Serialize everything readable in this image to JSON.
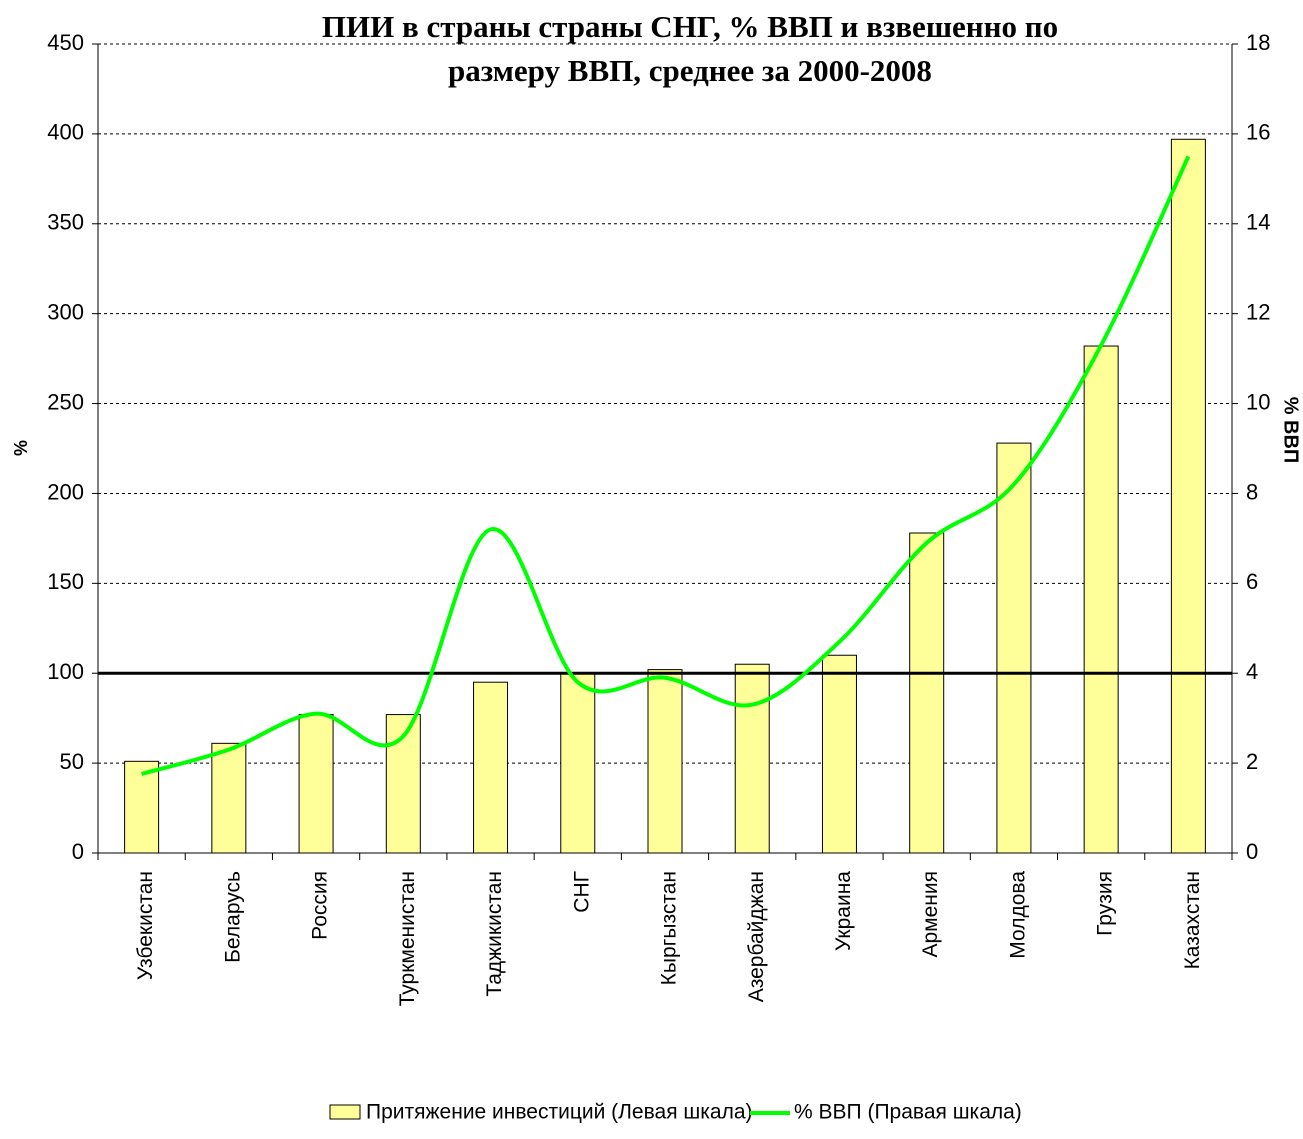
{
  "chart_data": {
    "type": "bar_line",
    "title": [
      "ПИИ в страны страны СНГ, % ВВП и взвешенно по",
      "размеру ВВП, среднее за 2000-2008"
    ],
    "y_label": "%",
    "y2_label": "% ВВП",
    "categories": [
      "Узбекистан",
      "Беларусь",
      "Россия",
      "Туркменистан",
      "Таджикистан",
      "СНГ",
      "Кыргызстан",
      "Азербайджан",
      "Украина",
      "Армения",
      "Молдова",
      "Грузия",
      "Казахстан"
    ],
    "series": [
      {
        "name": "Притяжение инвестиций (Левая шкала)",
        "type": "bar",
        "color": "#ffff99",
        "values": [
          51,
          61,
          77,
          77,
          95,
          100,
          102,
          105,
          110,
          178,
          228,
          282,
          397
        ]
      },
      {
        "name": "% ВВП (Правая шкала)",
        "type": "line",
        "axis": "y2",
        "color": "#00ff00",
        "values": [
          1.76,
          2.3,
          3.1,
          2.6,
          7.2,
          3.8,
          3.9,
          3.3,
          4.7,
          6.9,
          8.2,
          11.3,
          15.5
        ]
      }
    ],
    "reference_line": 100,
    "ylim": [
      0,
      450
    ],
    "yticks": [
      0,
      50,
      100,
      150,
      200,
      250,
      300,
      350,
      400,
      450
    ],
    "y2lim": [
      0,
      18
    ],
    "y2ticks": [
      0,
      2,
      4,
      6,
      8,
      10,
      12,
      14,
      16,
      18
    ],
    "grid": true
  }
}
